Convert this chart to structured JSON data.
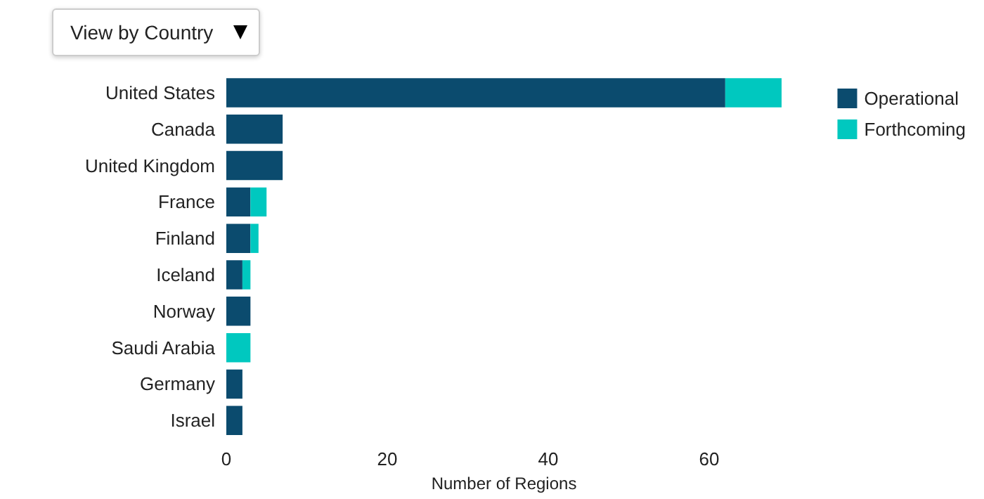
{
  "chart_data": {
    "type": "bar",
    "orientation": "horizontal",
    "stacked": true,
    "categories": [
      "United States",
      "Canada",
      "United Kingdom",
      "France",
      "Finland",
      "Iceland",
      "Norway",
      "Saudi Arabia",
      "Germany",
      "Israel"
    ],
    "series": [
      {
        "name": "Operational",
        "color": "#0b4b6e",
        "values": [
          62,
          7,
          7,
          3,
          3,
          2,
          3,
          0,
          2,
          2
        ]
      },
      {
        "name": "Forthcoming",
        "color": "#00c8bf",
        "values": [
          7,
          0,
          0,
          2,
          1,
          1,
          0,
          3,
          0,
          0
        ]
      }
    ],
    "xlabel": "Number of Regions",
    "xlim": [
      0,
      69
    ],
    "xticks": [
      0,
      20,
      40,
      60
    ],
    "grid": false,
    "legend": "top right",
    "annotations": [
      "View by Country"
    ]
  }
}
